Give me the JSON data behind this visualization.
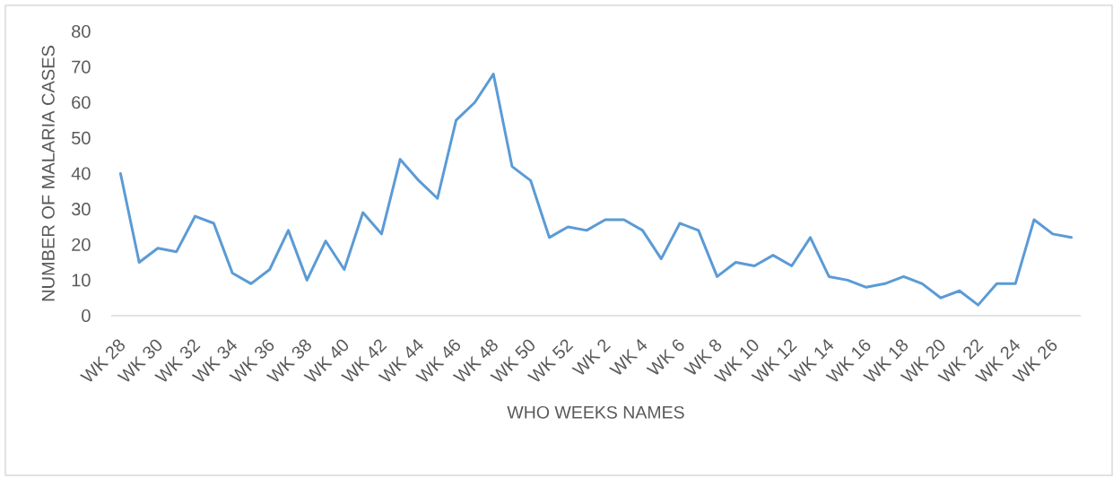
{
  "chart_data": {
    "type": "line",
    "xlabel": "WHO WEEKS NAMES",
    "ylabel": "NUMBER OF MALARIA CASES",
    "categories": [
      "WK 28",
      null,
      "WK 30",
      null,
      "WK 32",
      null,
      "WK 34",
      null,
      "WK 36",
      null,
      "WK 38",
      null,
      "WK 40",
      null,
      "WK 42",
      null,
      "WK 44",
      null,
      "WK 46",
      null,
      "WK 48",
      null,
      "WK 50",
      null,
      "WK 52",
      null,
      "WK 2",
      null,
      "WK 4",
      null,
      "WK 6",
      null,
      "WK 8",
      null,
      "WK 10",
      null,
      "WK 12",
      null,
      "WK 14",
      null,
      "WK 16",
      null,
      "WK 18",
      null,
      "WK 20",
      null,
      "WK 22",
      null,
      "WK 24",
      null,
      "WK 26",
      null
    ],
    "series": [
      {
        "color": "#5b9bd5",
        "values": [
          40,
          15,
          19,
          18,
          28,
          26,
          12,
          9,
          13,
          24,
          10,
          21,
          13,
          29,
          23,
          44,
          38,
          33,
          55,
          60,
          68,
          42,
          38,
          22,
          25,
          24,
          27,
          27,
          24,
          16,
          26,
          24,
          11,
          15,
          14,
          17,
          14,
          22,
          11,
          10,
          8,
          9,
          11,
          9,
          5,
          7,
          3,
          9,
          9,
          27,
          23,
          22
        ]
      }
    ],
    "ylim": [
      0,
      80
    ],
    "yticks": [
      0,
      10,
      20,
      30,
      40,
      50,
      60,
      70,
      80
    ],
    "line_style": "solid"
  }
}
